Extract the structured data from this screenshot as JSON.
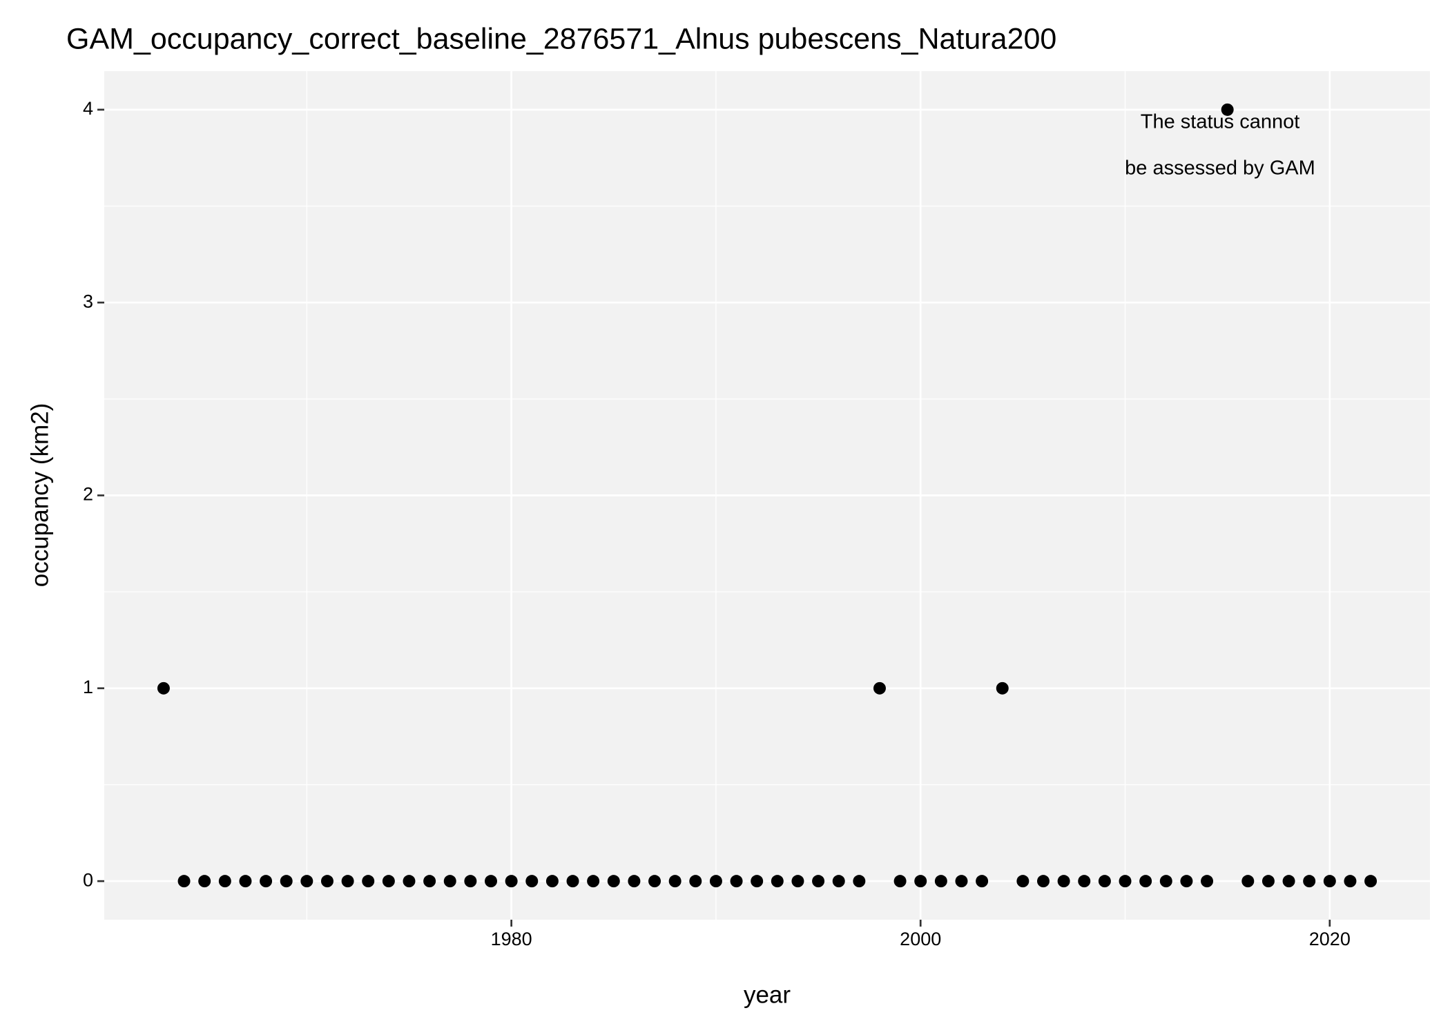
{
  "chart_data": {
    "type": "scatter",
    "title": "GAM_occupancy_correct_baseline_2876571_Alnus pubescens_Natura200",
    "x_label": "year",
    "y_label": "occupancy (km2)",
    "annotation": [
      "The status cannot",
      "be assessed by GAM"
    ],
    "annotation_color": "#ff0000",
    "color": "#000000",
    "x": [
      1963,
      1964,
      1965,
      1966,
      1967,
      1968,
      1969,
      1970,
      1971,
      1972,
      1973,
      1974,
      1975,
      1976,
      1977,
      1978,
      1979,
      1980,
      1981,
      1982,
      1983,
      1984,
      1985,
      1986,
      1987,
      1988,
      1989,
      1990,
      1991,
      1992,
      1993,
      1994,
      1995,
      1996,
      1997,
      1998,
      1999,
      2000,
      2001,
      2002,
      2003,
      2004,
      2005,
      2006,
      2007,
      2008,
      2009,
      2010,
      2011,
      2012,
      2013,
      2014,
      2015,
      2016,
      2017,
      2018,
      2019,
      2020,
      2021,
      2022
    ],
    "values": [
      1,
      0,
      0,
      0,
      0,
      0,
      0,
      0,
      0,
      0,
      0,
      0,
      0,
      0,
      0,
      0,
      0,
      0,
      0,
      0,
      0,
      0,
      0,
      0,
      0,
      0,
      0,
      0,
      0,
      0,
      0,
      0,
      0,
      0,
      0,
      1,
      0,
      0,
      0,
      0,
      0,
      1,
      0,
      0,
      0,
      0,
      0,
      0,
      0,
      0,
      0,
      0,
      4,
      0,
      0,
      0,
      0,
      0,
      0,
      0
    ],
    "xlim": [
      1960.1,
      2024.9
    ],
    "ylim": [
      -0.2,
      4.2
    ],
    "xticks": [
      1980,
      2000,
      2020
    ],
    "yticks": [
      0,
      1,
      2,
      3,
      4
    ],
    "grid": true
  }
}
